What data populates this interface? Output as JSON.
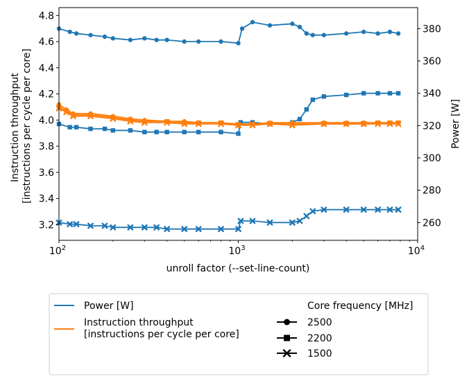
{
  "chart_data": {
    "type": "line",
    "xlabel": "unroll factor (--set-line-count)",
    "xscale": "log",
    "xlim": [
      100,
      10000
    ],
    "x_ticks": [
      {
        "value": 100,
        "base": "10",
        "exp": "2"
      },
      {
        "value": 1000,
        "base": "10",
        "exp": "3"
      },
      {
        "value": 10000,
        "base": "10",
        "exp": "4"
      }
    ],
    "left_axis": {
      "label_lines": [
        "Instruction throughput",
        "[instructions per cycle per core]"
      ],
      "lim": [
        3.08,
        4.86
      ],
      "ticks": [
        "3.2",
        "3.4",
        "3.6",
        "3.8",
        "4.0",
        "4.2",
        "4.4",
        "4.6",
        "4.8"
      ]
    },
    "right_axis": {
      "label": "Power [W]",
      "lim": [
        249,
        393
      ],
      "ticks": [
        "260",
        "280",
        "300",
        "320",
        "340",
        "360",
        "380"
      ]
    },
    "colors": {
      "power": "#1f77b4",
      "ipc": "#ff7f0e"
    },
    "series": [
      {
        "name": "Power [W]",
        "axis": "right",
        "frequency": "2500",
        "marker": "circle",
        "x": [
          100,
          115,
          125,
          150,
          180,
          200,
          250,
          300,
          350,
          400,
          500,
          600,
          800,
          1000,
          1050,
          1200,
          1500,
          2000,
          2200,
          2400,
          2600,
          3000,
          4000,
          5000,
          6000,
          7000,
          7800
        ],
        "values": [
          380,
          378,
          377,
          376,
          375,
          374,
          373,
          374,
          373,
          373,
          372,
          372,
          372,
          371,
          380,
          384,
          382,
          383,
          381,
          377,
          376,
          376,
          377,
          378,
          377,
          378,
          377
        ]
      },
      {
        "name": "Power [W]",
        "axis": "right",
        "frequency": "2200",
        "marker": "square",
        "x": [
          100,
          115,
          125,
          150,
          180,
          200,
          250,
          300,
          350,
          400,
          500,
          600,
          800,
          1000,
          1030,
          1200,
          1500,
          2000,
          2200,
          2400,
          2600,
          3000,
          4000,
          5000,
          6000,
          7000,
          7800
        ],
        "values": [
          321,
          319,
          319,
          318,
          318,
          317,
          317,
          316,
          316,
          316,
          316,
          316,
          316,
          315,
          322,
          322,
          321,
          322,
          324,
          330,
          336,
          338,
          339,
          340,
          340,
          340,
          340
        ]
      },
      {
        "name": "Power [W]",
        "axis": "right",
        "frequency": "1500",
        "marker": "x",
        "x": [
          100,
          115,
          125,
          150,
          180,
          200,
          250,
          300,
          350,
          400,
          500,
          600,
          800,
          1000,
          1030,
          1200,
          1500,
          2000,
          2200,
          2400,
          2600,
          3000,
          4000,
          5000,
          6000,
          7000,
          7800
        ],
        "values": [
          260,
          259,
          259,
          258,
          258,
          257,
          257,
          257,
          257,
          256,
          256,
          256,
          256,
          256,
          261,
          261,
          260,
          260,
          261,
          264,
          267,
          268,
          268,
          268,
          268,
          268,
          268
        ]
      },
      {
        "name": "Instruction throughput [instructions per cycle per core]",
        "axis": "left",
        "frequency": "2500",
        "marker": "circle",
        "x": [
          100,
          110,
          120,
          150,
          200,
          250,
          300,
          400,
          500,
          600,
          800,
          1000,
          1200,
          1500,
          2000,
          3000,
          4000,
          5000,
          6000,
          7000,
          7800
        ],
        "values": [
          4.12,
          4.08,
          4.05,
          4.05,
          4.03,
          4.01,
          4.0,
          3.99,
          3.99,
          3.98,
          3.98,
          3.97,
          3.97,
          3.98,
          3.98,
          3.98,
          3.98,
          3.98,
          3.98,
          3.98,
          3.98
        ]
      },
      {
        "name": "Instruction throughput [instructions per cycle per core]",
        "axis": "left",
        "frequency": "2200",
        "marker": "square",
        "x": [
          100,
          110,
          120,
          150,
          200,
          250,
          300,
          400,
          500,
          600,
          800,
          1000,
          1200,
          1500,
          2000,
          3000,
          4000,
          5000,
          6000,
          7000,
          7800
        ],
        "values": [
          4.1,
          4.07,
          4.04,
          4.04,
          4.02,
          4.0,
          3.99,
          3.99,
          3.98,
          3.98,
          3.98,
          3.96,
          3.97,
          3.97,
          3.97,
          3.97,
          3.97,
          3.97,
          3.98,
          3.98,
          3.98
        ]
      },
      {
        "name": "Instruction throughput [instructions per cycle per core]",
        "axis": "left",
        "frequency": "1500",
        "marker": "x",
        "x": [
          100,
          110,
          120,
          150,
          200,
          250,
          300,
          400,
          500,
          600,
          800,
          1000,
          1200,
          1500,
          2000,
          3000,
          4000,
          5000,
          6000,
          7000,
          7800
        ],
        "values": [
          4.09,
          4.06,
          4.03,
          4.03,
          4.01,
          3.99,
          3.98,
          3.98,
          3.97,
          3.97,
          3.97,
          3.96,
          3.96,
          3.97,
          3.96,
          3.97,
          3.97,
          3.97,
          3.97,
          3.97,
          3.97
        ]
      }
    ],
    "legend": {
      "placement": "below",
      "line_entries": [
        {
          "label_lines": [
            "Power [W]"
          ],
          "color_key": "power"
        },
        {
          "label_lines": [
            "Instruction throughput",
            "[instructions per cycle per core]"
          ],
          "color_key": "ipc"
        }
      ],
      "frequency_title": "Core frequency [MHz]",
      "marker_entries": [
        {
          "label": "2500",
          "marker": "circle"
        },
        {
          "label": "2200",
          "marker": "square"
        },
        {
          "label": "1500",
          "marker": "x"
        }
      ]
    }
  }
}
